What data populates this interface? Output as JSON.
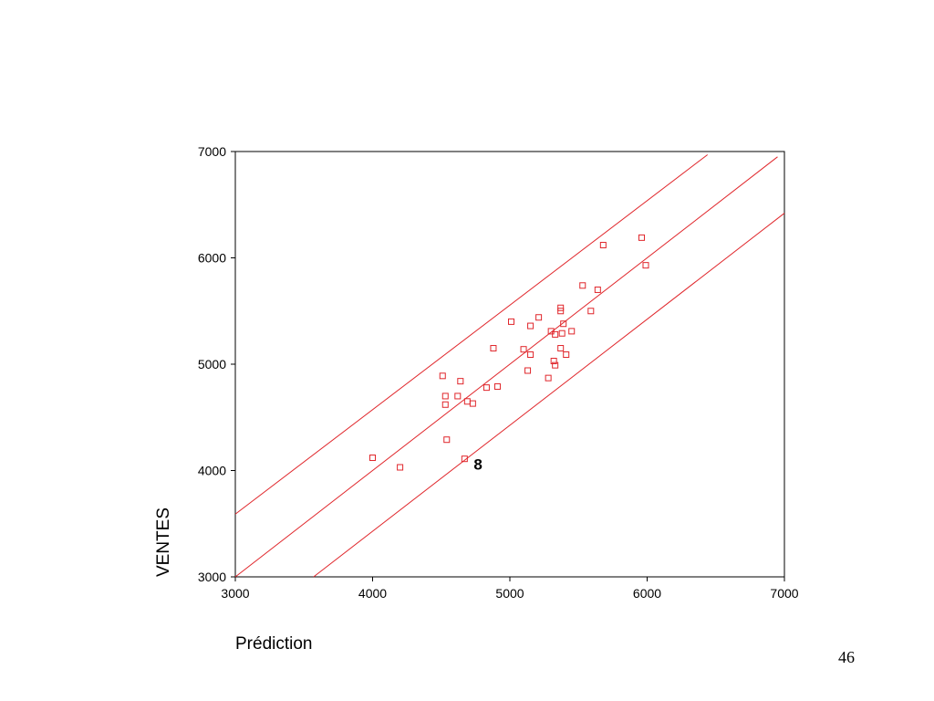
{
  "chart_data": {
    "type": "scatter",
    "x_label": "Prédiction",
    "y_label": "VENTES",
    "page_number": "46",
    "xlim": [
      3000,
      7000
    ],
    "ylim": [
      3000,
      7000
    ],
    "xticks": [
      3000,
      4000,
      5000,
      6000,
      7000
    ],
    "yticks": [
      3000,
      4000,
      5000,
      6000,
      7000
    ],
    "color": "#e0262b",
    "points": {
      "x": [
        4000,
        4200,
        4510,
        4530,
        4530,
        4540,
        4620,
        4640,
        4670,
        4690,
        4730,
        4830,
        4880,
        4910,
        5010,
        5100,
        5130,
        5150,
        5150,
        5210,
        5280,
        5300,
        5320,
        5330,
        5330,
        5370,
        5370,
        5370,
        5380,
        5390,
        5410,
        5450,
        5530,
        5590,
        5640,
        5680,
        5960,
        5990
      ],
      "values": [
        4120,
        4030,
        4890,
        4700,
        4620,
        4290,
        4700,
        4840,
        4110,
        4650,
        4630,
        4780,
        5150,
        4790,
        5400,
        5140,
        4940,
        5090,
        5360,
        5440,
        4870,
        5310,
        5030,
        5280,
        4990,
        5530,
        5150,
        5500,
        5290,
        5380,
        5090,
        5310,
        5740,
        5500,
        5700,
        6120,
        6190,
        5930
      ]
    },
    "lines": [
      {
        "x": [
          3000,
          6950
        ],
        "values": [
          3000,
          6950
        ]
      },
      {
        "x": [
          3000,
          6440
        ],
        "values": [
          3590,
          6970
        ]
      },
      {
        "x": [
          3570,
          7000
        ],
        "values": [
          3000,
          6420
        ]
      }
    ],
    "annotations": [
      {
        "text": "8",
        "x": 4670,
        "y": 4110
      }
    ]
  }
}
